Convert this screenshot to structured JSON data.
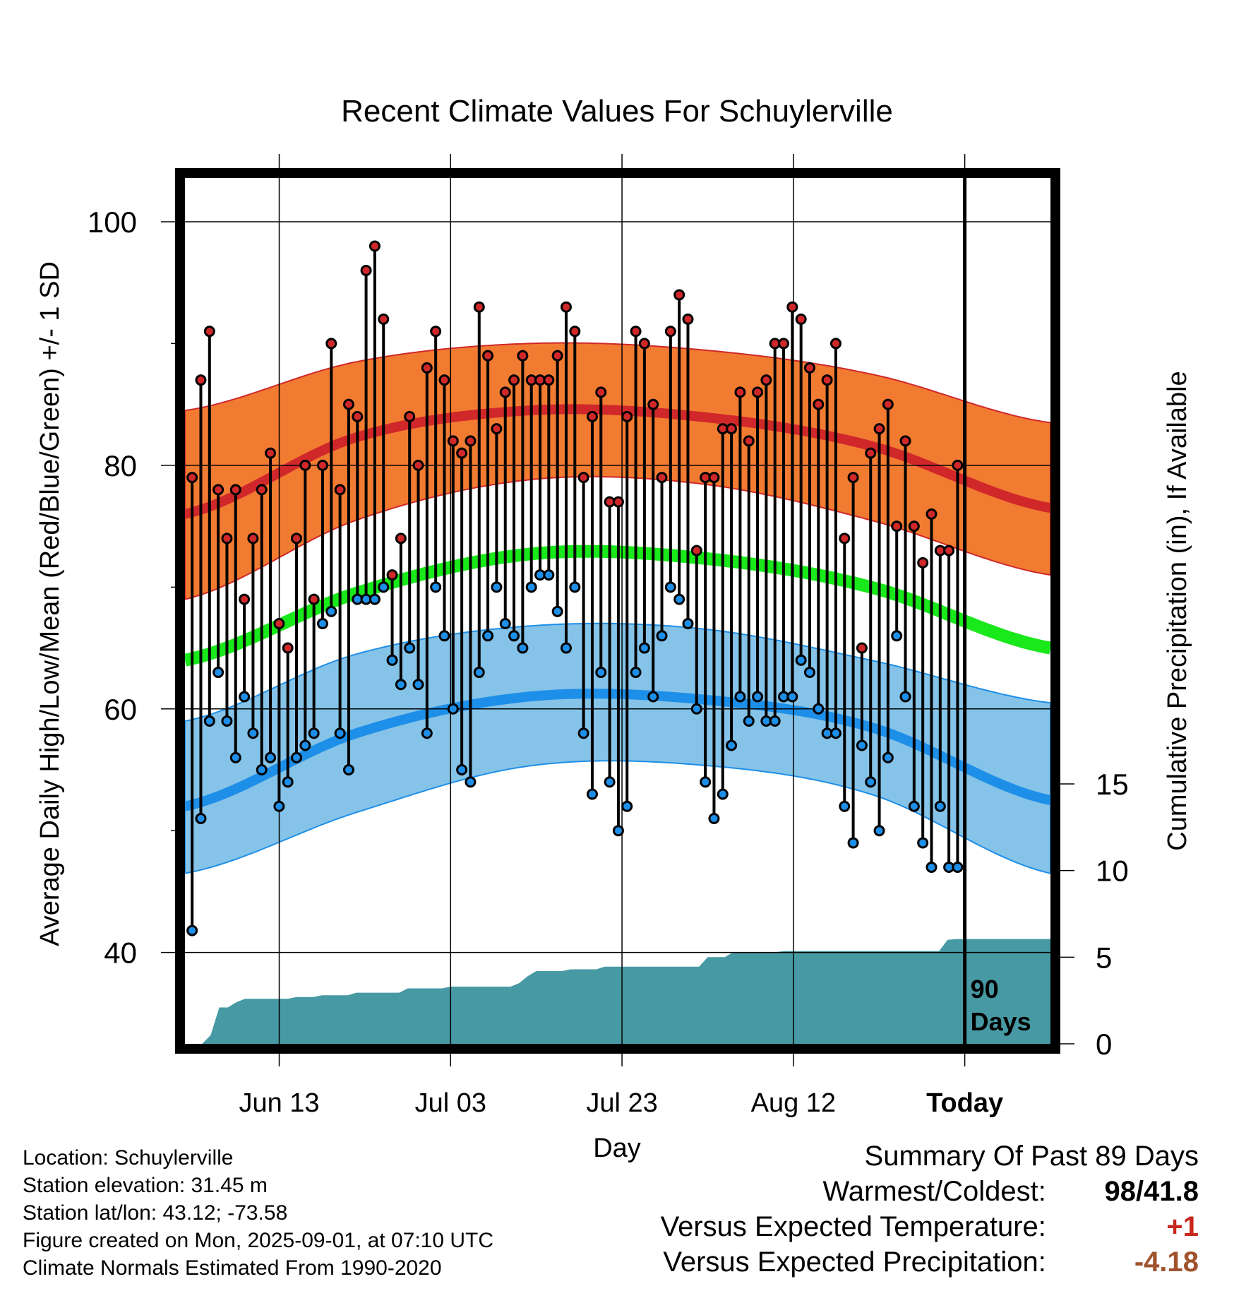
{
  "chart_data": {
    "type": "line",
    "title": "Recent Climate Values For Schuylerville",
    "xlabel": "Day",
    "ylabel": "Average Daily High/Low/Mean (Red/Blue/Green) +/- 1 SD",
    "y2label": "Cumulative Precipitation (in), If Available",
    "x_tick_labels": [
      "Jun 13",
      "Jul 03",
      "Jul 23",
      "Aug 12",
      "Today"
    ],
    "x_tick_days": [
      11,
      31,
      51,
      71,
      91
    ],
    "y_ticks": [
      40,
      60,
      80,
      100
    ],
    "ylim": [
      32.5,
      104
    ],
    "y2_ticks": [
      0,
      5,
      10,
      15
    ],
    "y2lim": [
      0,
      15
    ],
    "today_day": 91,
    "today_annotation": "90 Days",
    "xlim": [
      0,
      101
    ],
    "grid": true,
    "normals": {
      "days": [
        0,
        20,
        40,
        60,
        80,
        101
      ],
      "high_mean": [
        76.0,
        82.3,
        84.5,
        84.0,
        81.6,
        76.5
      ],
      "high_upper": [
        84.5,
        88.5,
        90.0,
        89.5,
        87.5,
        83.5
      ],
      "high_lower": [
        69.0,
        75.5,
        78.8,
        78.5,
        75.5,
        71.0
      ],
      "mean": [
        64.0,
        69.5,
        72.7,
        72.4,
        70.0,
        65.0
      ],
      "low_mean": [
        52.0,
        58.0,
        61.0,
        60.8,
        58.5,
        52.5
      ],
      "low_upper": [
        59.0,
        64.5,
        66.8,
        66.6,
        64.0,
        60.5
      ],
      "low_lower": [
        46.5,
        51.5,
        55.3,
        55.4,
        53.0,
        46.5
      ]
    },
    "series": [
      {
        "name": "High",
        "color": "#d0282a",
        "values": [
          79,
          87,
          91,
          78,
          74,
          78,
          69,
          74,
          78,
          81,
          67,
          65,
          74,
          80,
          69,
          80,
          90,
          78,
          85,
          84,
          96,
          98,
          92,
          71,
          74,
          84,
          80,
          88,
          91,
          87,
          82,
          81,
          82,
          93,
          89,
          83,
          86,
          87,
          89,
          87,
          87,
          87,
          89,
          93,
          91,
          79,
          84,
          86,
          77,
          77,
          84,
          91,
          90,
          85,
          79,
          91,
          94,
          92,
          73,
          79,
          79,
          83,
          83,
          86,
          82,
          86,
          87,
          90,
          90,
          93,
          92,
          88,
          85,
          87,
          90,
          74,
          79,
          65,
          81,
          83,
          85,
          75,
          82,
          75,
          72,
          76,
          73,
          73,
          80
        ]
      },
      {
        "name": "Low",
        "color": "#1e8fe8",
        "values": [
          41.8,
          51,
          59,
          63,
          59,
          56,
          61,
          58,
          55,
          56,
          52,
          54,
          56,
          57,
          58,
          67,
          68,
          58,
          55,
          69,
          69,
          69,
          70,
          64,
          62,
          65,
          62,
          58,
          70,
          66,
          60,
          55,
          54,
          63,
          66,
          70,
          67,
          66,
          65,
          70,
          71,
          71,
          68,
          65,
          70,
          58,
          53,
          63,
          54,
          50,
          52,
          63,
          65,
          61,
          66,
          70,
          69,
          67,
          60,
          54,
          51,
          53,
          57,
          61,
          59,
          61,
          59,
          59,
          61,
          61,
          64,
          63,
          60,
          58,
          58,
          52,
          49,
          57,
          54,
          50,
          56,
          66,
          61,
          52,
          49,
          47,
          52,
          47,
          47
        ]
      }
    ],
    "precipitation": {
      "days": [
        0,
        2,
        3,
        4,
        5,
        6,
        7,
        8,
        9,
        10,
        11,
        12,
        13,
        14,
        15,
        16,
        17,
        18,
        19,
        20,
        21,
        22,
        23,
        24,
        25,
        26,
        27,
        28,
        29,
        30,
        31,
        32,
        33,
        34,
        35,
        36,
        37,
        38,
        39,
        40,
        41,
        42,
        43,
        44,
        45,
        46,
        47,
        48,
        49,
        50,
        51,
        52,
        53,
        54,
        55,
        56,
        57,
        58,
        59,
        60,
        61,
        62,
        63,
        64,
        65,
        66,
        67,
        68,
        69,
        70,
        71,
        72,
        73,
        74,
        75,
        76,
        77,
        78,
        79,
        80,
        81,
        82,
        83,
        84,
        85,
        86,
        87,
        88,
        89,
        90,
        91,
        92,
        93,
        94,
        95,
        96,
        97,
        98,
        99,
        100,
        101
      ],
      "values": [
        0,
        0,
        0.5,
        2.1,
        2.1,
        2.4,
        2.6,
        2.6,
        2.6,
        2.6,
        2.6,
        2.6,
        2.7,
        2.7,
        2.7,
        2.8,
        2.8,
        2.8,
        2.8,
        2.95,
        2.95,
        2.95,
        2.95,
        2.95,
        2.95,
        3.2,
        3.2,
        3.2,
        3.2,
        3.2,
        3.3,
        3.3,
        3.3,
        3.3,
        3.3,
        3.3,
        3.3,
        3.3,
        3.5,
        3.9,
        4.2,
        4.2,
        4.2,
        4.2,
        4.3,
        4.3,
        4.3,
        4.3,
        4.45,
        4.45,
        4.45,
        4.45,
        4.45,
        4.45,
        4.45,
        4.45,
        4.45,
        4.45,
        4.45,
        4.45,
        5.0,
        5.0,
        5.0,
        5.3,
        5.3,
        5.3,
        5.3,
        5.3,
        5.3,
        5.35,
        5.35,
        5.35,
        5.35,
        5.35,
        5.35,
        5.35,
        5.35,
        5.35,
        5.35,
        5.35,
        5.35,
        5.35,
        5.35,
        5.35,
        5.35,
        5.35,
        5.35,
        5.35,
        6.0,
        6.05,
        6.05,
        6.05,
        6.05,
        6.05,
        6.05,
        6.05,
        6.05,
        6.05,
        6.05,
        6.05,
        6.05
      ]
    }
  },
  "meta": {
    "location": "Location: Schuylerville",
    "elevation": "Station elevation: 31.45 m",
    "latlon": "Station lat/lon: 43.12; -73.58",
    "created": "Figure created on Mon, 2025-09-01, at 07:10 UTC",
    "normals_note": "Climate Normals Estimated From 1990-2020"
  },
  "summary": {
    "title": "Summary Of Past 89 Days",
    "warmest_coldest_label": "Warmest/Coldest:",
    "warmest": "98",
    "separator": "/",
    "coldest": "41.8",
    "temp_label": "Versus Expected Temperature:",
    "temp_value": "+1",
    "temp_color": "#c8281e",
    "precip_label": "Versus Expected Precipitation:",
    "precip_value": "-4.18",
    "precip_color": "#a0522d"
  },
  "colors": {
    "high_band": "#f27b32",
    "high_line": "#d0282a",
    "mean_line": "#19e81a",
    "low_band": "#86c3e8",
    "low_line": "#1e8fe8",
    "precip_fill": "#479aa4"
  }
}
